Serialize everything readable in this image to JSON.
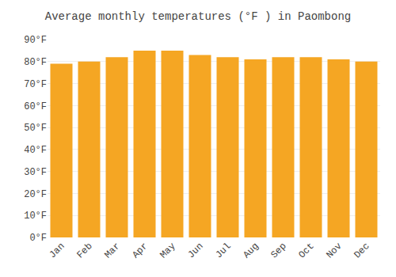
{
  "chart_data": {
    "type": "bar",
    "title": "Average monthly temperatures (°F ) in Paombong",
    "categories": [
      "Jan",
      "Feb",
      "Mar",
      "Apr",
      "May",
      "Jun",
      "Jul",
      "Aug",
      "Sep",
      "Oct",
      "Nov",
      "Dec"
    ],
    "values": [
      79,
      80,
      82,
      85,
      85,
      83,
      82,
      81,
      82,
      82,
      81,
      80
    ],
    "color": "#F5A623",
    "ylim": [
      0,
      90
    ],
    "yticks": [
      {
        "value": 0,
        "label": "0°F"
      },
      {
        "value": 10,
        "label": "10°F"
      },
      {
        "value": 20,
        "label": "20°F"
      },
      {
        "value": 30,
        "label": "30°F"
      },
      {
        "value": 40,
        "label": "40°F"
      },
      {
        "value": 50,
        "label": "50°F"
      },
      {
        "value": 60,
        "label": "60°F"
      },
      {
        "value": 70,
        "label": "70°F"
      },
      {
        "value": 80,
        "label": "80°F"
      },
      {
        "value": 90,
        "label": "90°F"
      }
    ],
    "grid": true
  }
}
